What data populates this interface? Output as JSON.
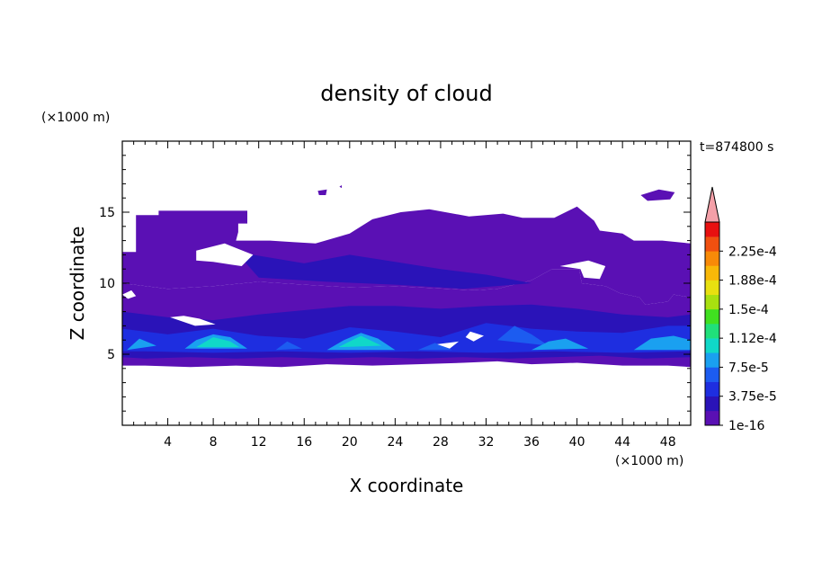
{
  "chart_data": {
    "type": "heatmap",
    "title": "density of cloud",
    "xlabel": "X coordinate",
    "ylabel": "Z coordinate",
    "x_unit": "(×1000 m)",
    "y_unit": "(×1000 m)",
    "time_label": "t=874800 s",
    "xlim": [
      0,
      50
    ],
    "ylim": [
      0,
      20
    ],
    "x_ticks": [
      4,
      8,
      12,
      16,
      20,
      24,
      28,
      32,
      36,
      40,
      44,
      48
    ],
    "y_ticks": [
      5,
      10,
      15
    ],
    "colorbar": {
      "labels": [
        "1e-16",
        "3.75e-5",
        "7.5e-5",
        "1.12e-4",
        "1.5e-4",
        "1.88e-4",
        "2.25e-4"
      ],
      "colors": [
        "#5a10b4",
        "#2a13b8",
        "#1e2ee0",
        "#1c5cf0",
        "#1aa0f0",
        "#10d8c8",
        "#20e07a",
        "#40e020",
        "#a8e010",
        "#e8e010",
        "#f8b808",
        "#f88a08",
        "#f05010",
        "#e81010"
      ],
      "extend_color": "#f4a0a8"
    },
    "regions": [
      {
        "level": 0,
        "points": [
          [
            0,
            12.2
          ],
          [
            1.2,
            12.2
          ],
          [
            1.2,
            14.8
          ],
          [
            3.2,
            14.8
          ],
          [
            3.2,
            15.1
          ],
          [
            11,
            15.1
          ],
          [
            11,
            14.2
          ],
          [
            10.2,
            14.2
          ],
          [
            10.2,
            13.6
          ],
          [
            10,
            13
          ],
          [
            13,
            13
          ],
          [
            15,
            12.9
          ],
          [
            17,
            12.8
          ],
          [
            20,
            13.5
          ],
          [
            22,
            14.5
          ],
          [
            24.5,
            15
          ],
          [
            27,
            15.2
          ],
          [
            30.5,
            14.7
          ],
          [
            33.5,
            14.9
          ],
          [
            35.2,
            14.6
          ],
          [
            38,
            14.6
          ],
          [
            40,
            15.4
          ],
          [
            41.5,
            14.4
          ],
          [
            42,
            13.7
          ],
          [
            44,
            13.5
          ],
          [
            45,
            13
          ],
          [
            47.5,
            13
          ],
          [
            50,
            12.8
          ],
          [
            50,
            9
          ],
          [
            48.5,
            9.2
          ],
          [
            48,
            8.7
          ],
          [
            46,
            8.5
          ],
          [
            45.5,
            9
          ],
          [
            43.8,
            9.3
          ],
          [
            42.5,
            9.8
          ],
          [
            40.4,
            10
          ],
          [
            40.2,
            11
          ],
          [
            37.8,
            11
          ],
          [
            36,
            10.2
          ],
          [
            33,
            9.6
          ],
          [
            31,
            9.5
          ],
          [
            24,
            9.8
          ],
          [
            20,
            9.7
          ],
          [
            16,
            9.9
          ],
          [
            12,
            10.1
          ],
          [
            8,
            9.8
          ],
          [
            4,
            9.6
          ],
          [
            0,
            10
          ]
        ]
      },
      {
        "level": 0,
        "points": [
          [
            0,
            10
          ],
          [
            4,
            9.6
          ],
          [
            8,
            9.8
          ],
          [
            12,
            10.1
          ],
          [
            16,
            9.9
          ],
          [
            20,
            9.7
          ],
          [
            24,
            9.8
          ],
          [
            31,
            9.5
          ],
          [
            33,
            9.6
          ],
          [
            36,
            10.2
          ],
          [
            37.8,
            11
          ],
          [
            40.2,
            11
          ],
          [
            40.4,
            10
          ],
          [
            42.5,
            9.8
          ],
          [
            43.8,
            9.3
          ],
          [
            45.5,
            9
          ],
          [
            46,
            8.5
          ],
          [
            48,
            8.7
          ],
          [
            48.5,
            9.2
          ],
          [
            50,
            9
          ],
          [
            50,
            4.1
          ],
          [
            48,
            4.2
          ],
          [
            44,
            4.2
          ],
          [
            40,
            4.4
          ],
          [
            36,
            4.3
          ],
          [
            33,
            4.5
          ],
          [
            30,
            4.4
          ],
          [
            26,
            4.3
          ],
          [
            22,
            4.2
          ],
          [
            18,
            4.3
          ],
          [
            14,
            4.1
          ],
          [
            10,
            4.2
          ],
          [
            6,
            4.1
          ],
          [
            2,
            4.2
          ],
          [
            0,
            4.2
          ]
        ]
      },
      {
        "level": 1,
        "points": [
          [
            0,
            8
          ],
          [
            4,
            7.6
          ],
          [
            8,
            7.4
          ],
          [
            12,
            7.8
          ],
          [
            16,
            8.1
          ],
          [
            20,
            8.4
          ],
          [
            24,
            8.4
          ],
          [
            28,
            8.2
          ],
          [
            32,
            8.4
          ],
          [
            36,
            8.5
          ],
          [
            40,
            8.2
          ],
          [
            44,
            7.8
          ],
          [
            48,
            7.6
          ],
          [
            50,
            7.8
          ],
          [
            50,
            4.8
          ],
          [
            46,
            4.7
          ],
          [
            42,
            4.9
          ],
          [
            38,
            4.8
          ],
          [
            34,
            4.7
          ],
          [
            30,
            4.8
          ],
          [
            26,
            4.7
          ],
          [
            22,
            4.8
          ],
          [
            18,
            4.7
          ],
          [
            14,
            4.8
          ],
          [
            10,
            4.7
          ],
          [
            6,
            4.8
          ],
          [
            2,
            4.7
          ],
          [
            0,
            4.8
          ]
        ]
      },
      {
        "level": 1,
        "points": [
          [
            10,
            12.2
          ],
          [
            16,
            11.4
          ],
          [
            20,
            12
          ],
          [
            24,
            11.5
          ],
          [
            28,
            11
          ],
          [
            32,
            10.6
          ],
          [
            36,
            10
          ],
          [
            30,
            9.6
          ],
          [
            24,
            9.9
          ],
          [
            18,
            10.1
          ],
          [
            12,
            10.4
          ]
        ]
      },
      {
        "level": 2,
        "points": [
          [
            0,
            6.8
          ],
          [
            4,
            6.4
          ],
          [
            8,
            6.8
          ],
          [
            12,
            6.3
          ],
          [
            16,
            6.1
          ],
          [
            20,
            6.9
          ],
          [
            24,
            6.6
          ],
          [
            28,
            6.2
          ],
          [
            32,
            7.2
          ],
          [
            36,
            6.8
          ],
          [
            40,
            6.6
          ],
          [
            44,
            6.5
          ],
          [
            48,
            7
          ],
          [
            50,
            7
          ],
          [
            50,
            5.2
          ],
          [
            44,
            5.1
          ],
          [
            38,
            5.2
          ],
          [
            32,
            5.1
          ],
          [
            26,
            5.2
          ],
          [
            20,
            5.1
          ],
          [
            14,
            5.2
          ],
          [
            8,
            5.1
          ],
          [
            2,
            5.2
          ],
          [
            0,
            5.2
          ]
        ]
      },
      {
        "level": 4,
        "points": [
          [
            5.5,
            5.4
          ],
          [
            6.5,
            6
          ],
          [
            8,
            6.4
          ],
          [
            9.5,
            6.2
          ],
          [
            11,
            5.4
          ]
        ]
      },
      {
        "level": 5,
        "points": [
          [
            6.5,
            5.5
          ],
          [
            8,
            6.2
          ],
          [
            9.5,
            5.9
          ],
          [
            10.3,
            5.5
          ]
        ]
      },
      {
        "level": 4,
        "points": [
          [
            18,
            5.3
          ],
          [
            19.5,
            6
          ],
          [
            21,
            6.5
          ],
          [
            22.5,
            6.1
          ],
          [
            24,
            5.3
          ]
        ]
      },
      {
        "level": 5,
        "points": [
          [
            19,
            5.5
          ],
          [
            21,
            6.3
          ],
          [
            22.8,
            5.6
          ]
        ]
      },
      {
        "level": 4,
        "points": [
          [
            0.4,
            5.3
          ],
          [
            1.5,
            6.1
          ],
          [
            3,
            5.6
          ]
        ]
      },
      {
        "level": 3,
        "points": [
          [
            33,
            6
          ],
          [
            34.5,
            7
          ],
          [
            36,
            6.4
          ],
          [
            37.5,
            5.6
          ]
        ]
      },
      {
        "level": 4,
        "points": [
          [
            36,
            5.3
          ],
          [
            37.5,
            5.9
          ],
          [
            39,
            6.1
          ],
          [
            41,
            5.4
          ]
        ]
      },
      {
        "level": 4,
        "points": [
          [
            45,
            5.3
          ],
          [
            46.5,
            6.1
          ],
          [
            48.5,
            6.3
          ],
          [
            50,
            6
          ],
          [
            50,
            5.3
          ]
        ]
      },
      {
        "level": 3,
        "points": [
          [
            26,
            5.3
          ],
          [
            27.5,
            5.8
          ],
          [
            29,
            5.3
          ]
        ]
      },
      {
        "level": 3,
        "points": [
          [
            13.5,
            5.3
          ],
          [
            14.5,
            5.9
          ],
          [
            15.8,
            5.4
          ]
        ]
      }
    ],
    "gaps": [
      {
        "points": [
          [
            6.5,
            12.3
          ],
          [
            9,
            12.8
          ],
          [
            11.5,
            12
          ],
          [
            10.5,
            11.2
          ],
          [
            8,
            11.5
          ],
          [
            6.5,
            11.6
          ]
        ]
      },
      {
        "points": [
          [
            38.5,
            11.2
          ],
          [
            41,
            11.6
          ],
          [
            42.5,
            11.2
          ],
          [
            42,
            10.3
          ],
          [
            40.6,
            10.4
          ],
          [
            40.3,
            11
          ]
        ]
      },
      {
        "points": [
          [
            4.2,
            7.6
          ],
          [
            6.4,
            7
          ],
          [
            8.2,
            7.1
          ],
          [
            6.8,
            7.5
          ],
          [
            5.4,
            7.7
          ]
        ]
      },
      {
        "points": [
          [
            30.6,
            6.6
          ],
          [
            31.8,
            6.3
          ],
          [
            30.9,
            5.9
          ],
          [
            30.2,
            6.2
          ]
        ]
      },
      {
        "points": [
          [
            27.7,
            5.7
          ],
          [
            29.6,
            5.9
          ],
          [
            28.8,
            5.4
          ]
        ]
      },
      {
        "points": [
          [
            0,
            9.2
          ],
          [
            0.8,
            9.5
          ],
          [
            1.2,
            9.1
          ],
          [
            0.5,
            8.9
          ]
        ]
      }
    ],
    "islands": [
      {
        "points": [
          [
            45.6,
            16.2
          ],
          [
            47.2,
            16.6
          ],
          [
            48.6,
            16.4
          ],
          [
            48.2,
            15.9
          ],
          [
            46.2,
            15.8
          ]
        ]
      },
      {
        "points": [
          [
            17.2,
            16.5
          ],
          [
            18,
            16.6
          ],
          [
            17.9,
            16.2
          ],
          [
            17.3,
            16.2
          ]
        ]
      },
      {
        "points": [
          [
            19.1,
            16.8
          ],
          [
            19.3,
            16.9
          ],
          [
            19.3,
            16.7
          ]
        ]
      }
    ]
  }
}
